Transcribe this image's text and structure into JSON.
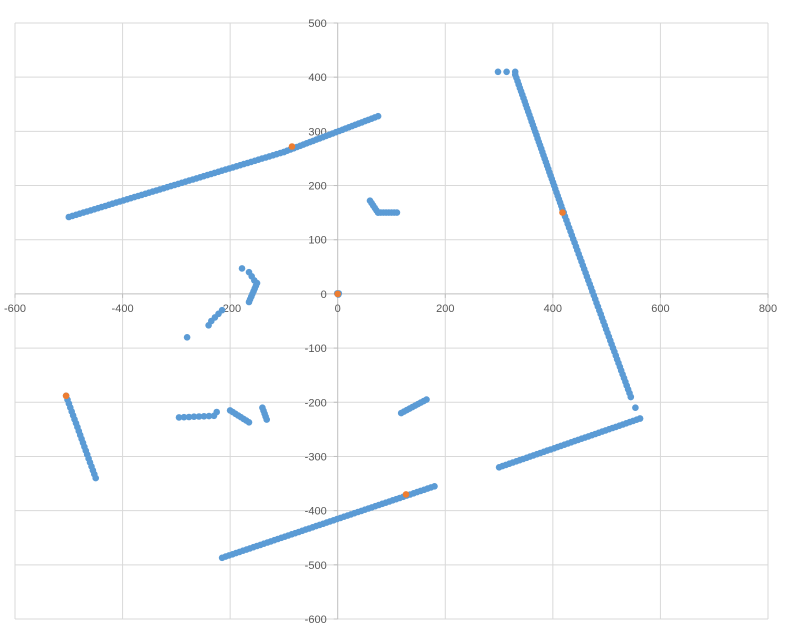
{
  "chart_data": {
    "type": "scatter",
    "title": "",
    "xlabel": "",
    "ylabel": "",
    "xlim": [
      -600,
      800
    ],
    "ylim": [
      -600,
      500
    ],
    "x_ticks": [
      -600,
      -400,
      -200,
      0,
      200,
      400,
      600,
      800
    ],
    "y_ticks": [
      -600,
      -500,
      -400,
      -300,
      -200,
      -100,
      0,
      100,
      200,
      300,
      400,
      500
    ],
    "x_tick_labels": [
      "-600",
      "-400",
      "-200",
      "0",
      "200",
      "400",
      "600",
      "800"
    ],
    "y_tick_labels": [
      "-600",
      "-500",
      "-400",
      "-300",
      "-200",
      "-100",
      "0",
      "100",
      "200",
      "300",
      "400",
      "500"
    ],
    "grid": true,
    "legend": "none",
    "series": [
      {
        "color": "#5b9bd5",
        "segments": [
          {
            "from": [
              -500,
              142
            ],
            "to": [
              -100,
              262
            ],
            "n": 60
          },
          {
            "from": [
              -100,
              262
            ],
            "to": [
              75,
              328
            ],
            "n": 30
          },
          {
            "from": [
              298,
              410
            ],
            "to": [
              330,
              410
            ],
            "n": 3
          },
          {
            "from": [
              330,
              405
            ],
            "to": [
              420,
              150
            ],
            "n": 42
          },
          {
            "from": [
              420,
              150
            ],
            "to": [
              545,
              -190
            ],
            "n": 50
          },
          {
            "from": [
              545,
              -190
            ],
            "to": [
              562,
              -230
            ],
            "n": 3
          },
          {
            "from": [
              562,
              -230
            ],
            "to": [
              300,
              -320
            ],
            "n": 42
          },
          {
            "from": [
              180,
              -355
            ],
            "to": [
              -215,
              -487
            ],
            "n": 62
          },
          {
            "from": [
              -505,
              -188
            ],
            "to": [
              -450,
              -340
            ],
            "n": 22
          },
          {
            "from": [
              -295,
              -228
            ],
            "to": [
              -230,
              -225
            ],
            "n": 8
          },
          {
            "from": [
              -200,
              -215
            ],
            "to": [
              -165,
              -237
            ],
            "n": 8
          },
          {
            "from": [
              -140,
              -210
            ],
            "to": [
              -132,
              -232
            ],
            "n": 5
          },
          {
            "from": [
              -235,
              -50
            ],
            "to": [
              -215,
              -30
            ],
            "n": 4
          },
          {
            "from": [
              60,
              172
            ],
            "to": [
              75,
              150
            ],
            "n": 6
          },
          {
            "from": [
              75,
              150
            ],
            "to": [
              110,
              150
            ],
            "n": 8
          },
          {
            "from": [
              118,
              -220
            ],
            "to": [
              165,
              -195
            ],
            "n": 10
          },
          {
            "from": [
              -165,
              40
            ],
            "to": [
              -155,
              25
            ],
            "n": 3
          },
          {
            "from": [
              -150,
              20
            ],
            "to": [
              -165,
              -15
            ],
            "n": 8
          }
        ],
        "points": [
          [
            -280,
            -80
          ],
          [
            -178,
            47
          ],
          [
            -240,
            -58
          ],
          [
            -225,
            -218
          ],
          [
            0,
            0
          ],
          [
            1,
            -1
          ],
          [
            -1,
            1
          ],
          [
            2,
            1
          ]
        ]
      },
      {
        "color": "#ed7d31",
        "segments": [],
        "points": [
          [
            0,
            0
          ],
          [
            -85,
            272
          ],
          [
            418,
            150
          ],
          [
            127,
            -370
          ],
          [
            -505,
            -188
          ]
        ]
      }
    ]
  }
}
